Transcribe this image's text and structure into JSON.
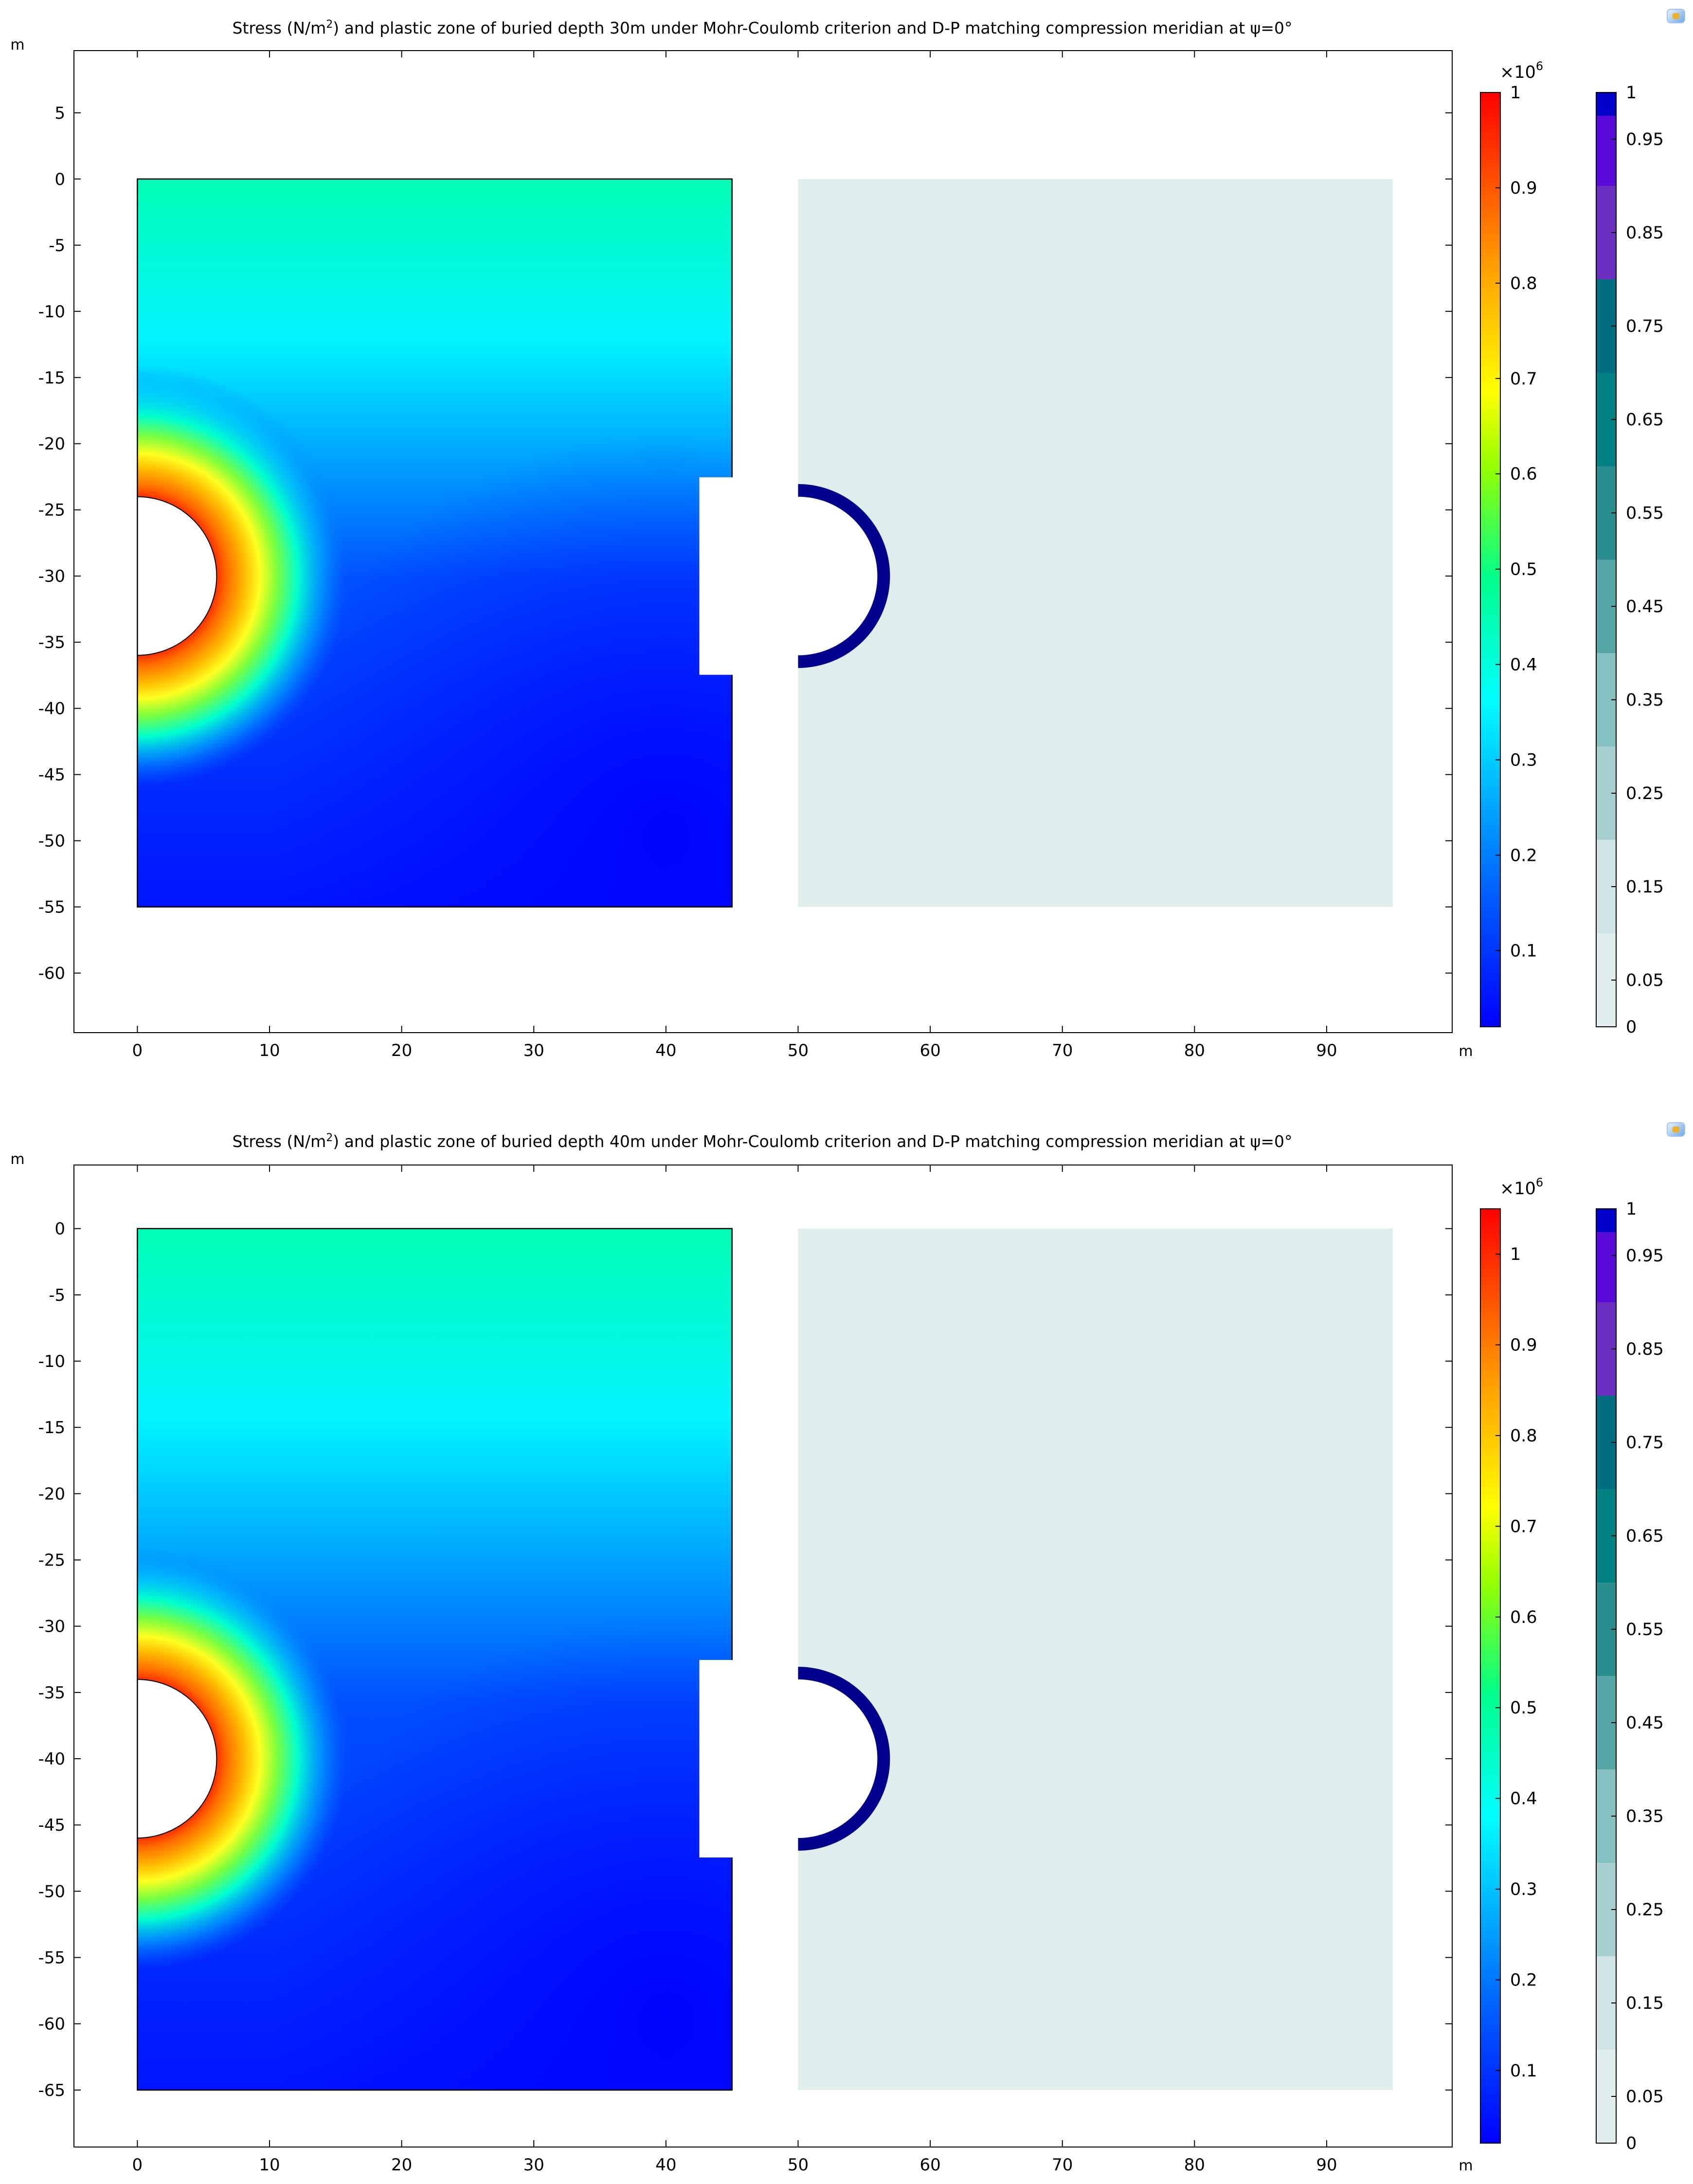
{
  "chart_data": [
    {
      "type": "heatmap",
      "title_before": "Stress (N/m",
      "title_sup": "2",
      "title_after": ") and plastic zone of buried depth 30m under Mohr-Coulomb criterion and D-P matching compression meridian at ψ=0°",
      "axis_unit_x": "m",
      "axis_unit_y": "m",
      "xlim": [
        -4.8,
        99.5
      ],
      "ylim": [
        -64.5,
        9.7
      ],
      "x_ticks": [
        0,
        10,
        20,
        30,
        40,
        50,
        60,
        70,
        80,
        90
      ],
      "y_ticks": [
        5,
        0,
        -5,
        -10,
        -15,
        -20,
        -25,
        -30,
        -35,
        -40,
        -45,
        -50,
        -55,
        -60
      ],
      "regions": {
        "stress_domain": {
          "x": [
            0,
            45
          ],
          "y": [
            -55,
            0
          ]
        },
        "plastic_domain": {
          "x": [
            50,
            95
          ],
          "y": [
            -55,
            0
          ]
        },
        "tunnel": {
          "center_y": -30,
          "radius": 6
        }
      },
      "stress_colorbar": {
        "multiplier_base": "×10",
        "multiplier_exp": "6",
        "min": 0.02,
        "max": 1.0,
        "ticks": [
          1,
          0.9,
          0.8,
          0.7,
          0.6,
          0.5,
          0.4,
          0.3,
          0.2,
          0.1
        ]
      },
      "plastic_colorbar": {
        "min": 0,
        "max": 1,
        "ticks": [
          1,
          0.95,
          0.85,
          0.75,
          0.65,
          0.55,
          0.45,
          0.35,
          0.25,
          0.15,
          0.05,
          0
        ],
        "band_colors": [
          "#e0eded",
          "#cfe5e5",
          "#a6d0d0",
          "#86c1c1",
          "#56a6a6",
          "#2a8e8e",
          "#008080",
          "#006e80",
          "#6a2fbf",
          "#5a0ad9",
          "#0000c9",
          "#00008c"
        ]
      }
    },
    {
      "type": "heatmap",
      "title_before": "Stress (N/m",
      "title_sup": "2",
      "title_after": ") and plastic zone of buried depth 40m under Mohr-Coulomb criterion and D-P matching compression meridian at ψ=0°",
      "axis_unit_x": "m",
      "axis_unit_y": "m",
      "xlim": [
        -4.8,
        99.5
      ],
      "ylim": [
        -69.3,
        4.8
      ],
      "x_ticks": [
        0,
        10,
        20,
        30,
        40,
        50,
        60,
        70,
        80,
        90
      ],
      "y_ticks": [
        0,
        -5,
        -10,
        -15,
        -20,
        -25,
        -30,
        -35,
        -40,
        -45,
        -50,
        -55,
        -60,
        -65
      ],
      "regions": {
        "stress_domain": {
          "x": [
            0,
            45
          ],
          "y": [
            -65,
            0
          ]
        },
        "plastic_domain": {
          "x": [
            50,
            95
          ],
          "y": [
            -65,
            0
          ]
        },
        "tunnel": {
          "center_y": -40,
          "radius": 6
        }
      },
      "stress_colorbar": {
        "multiplier_base": "×10",
        "multiplier_exp": "6",
        "min": 0.02,
        "max": 1.05,
        "ticks": [
          1,
          0.9,
          0.8,
          0.7,
          0.6,
          0.5,
          0.4,
          0.3,
          0.2,
          0.1
        ]
      },
      "plastic_colorbar": {
        "min": 0,
        "max": 1,
        "ticks": [
          1,
          0.95,
          0.85,
          0.75,
          0.65,
          0.55,
          0.45,
          0.35,
          0.25,
          0.15,
          0.05,
          0
        ],
        "band_colors": [
          "#e0eded",
          "#cfe5e5",
          "#a6d0d0",
          "#86c1c1",
          "#56a6a6",
          "#2a8e8e",
          "#008080",
          "#006e80",
          "#6a2fbf",
          "#5a0ad9",
          "#0000c9",
          "#00008c"
        ]
      }
    }
  ]
}
